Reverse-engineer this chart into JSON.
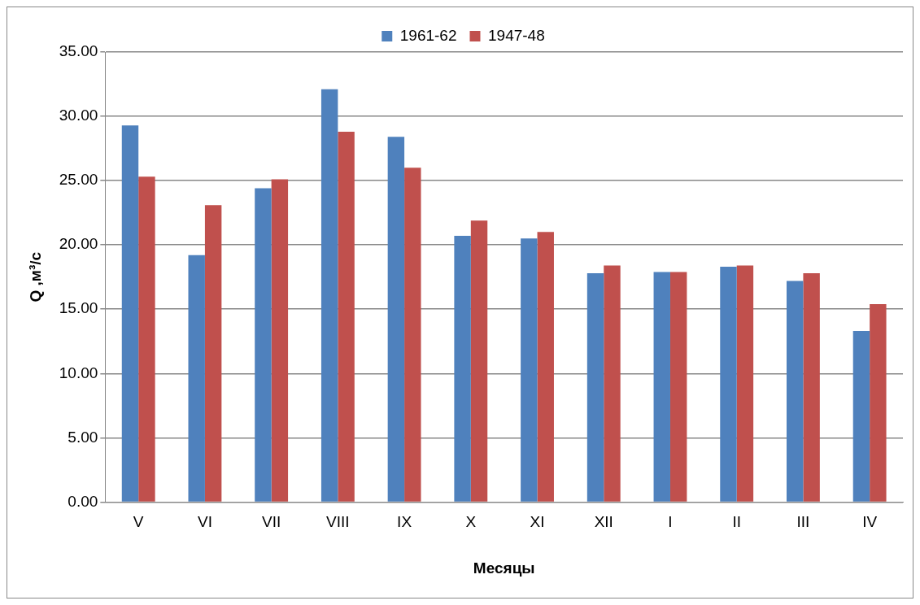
{
  "chart_data": {
    "type": "bar",
    "xlabel": "Месяцы",
    "ylabel": "Q ,м³/с",
    "categories": [
      "V",
      "VI",
      "VII",
      "VIII",
      "IX",
      "X",
      "XI",
      "XII",
      "I",
      "II",
      "III",
      "IV"
    ],
    "series": [
      {
        "name": "1961-62",
        "color": "#4f81bd",
        "values": [
          29.3,
          19.2,
          24.4,
          32.1,
          28.4,
          20.7,
          20.5,
          17.8,
          17.9,
          18.3,
          17.2,
          13.3
        ]
      },
      {
        "name": "1947-48",
        "color": "#c0504d",
        "values": [
          25.3,
          23.1,
          25.1,
          28.8,
          26.0,
          21.9,
          21.0,
          18.4,
          17.9,
          18.4,
          17.8,
          15.4
        ]
      }
    ],
    "ylim": [
      0,
      35
    ],
    "yticks": [
      {
        "value": 0,
        "label": "0.00"
      },
      {
        "value": 5,
        "label": "5.00"
      },
      {
        "value": 10,
        "label": "10.00"
      },
      {
        "value": 15,
        "label": "15.00"
      },
      {
        "value": 20,
        "label": "20.00"
      },
      {
        "value": 25,
        "label": "25.00"
      },
      {
        "value": 30,
        "label": "30.00"
      },
      {
        "value": 35,
        "label": "35.00"
      }
    ],
    "grid": "y",
    "legend": "top"
  }
}
